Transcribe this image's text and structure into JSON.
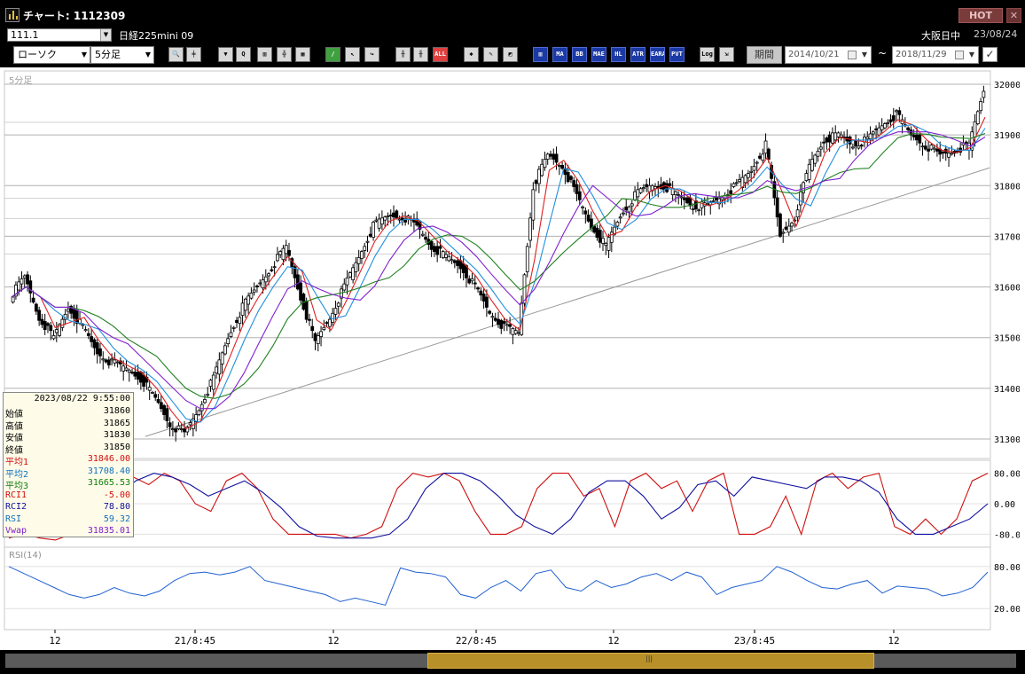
{
  "window": {
    "title": "チャート: 1112309",
    "hot_label": "HOT",
    "close_label": "✕"
  },
  "instrument": {
    "code": "111.1",
    "name": "日経225mini 09",
    "market": "大阪日中",
    "date": "23/08/24"
  },
  "toolbar": {
    "chart_type": "ローソク",
    "interval": "5分足",
    "icons": [
      {
        "name": "zoom-icon",
        "glyph": "🔍"
      },
      {
        "name": "crosshair-icon",
        "glyph": "╪"
      },
      {
        "name": "candle-tool-icon",
        "glyph": "▼"
      },
      {
        "name": "search-chart-icon",
        "glyph": "Q"
      },
      {
        "name": "bar-tool-icon",
        "glyph": "▥"
      },
      {
        "name": "pattern-icon",
        "glyph": "╬"
      },
      {
        "name": "grid-toggle-icon",
        "glyph": "▦"
      },
      {
        "name": "line-draw-icon",
        "glyph": "/"
      },
      {
        "name": "pointer-icon",
        "glyph": "↖"
      },
      {
        "name": "cursor-icon",
        "glyph": "↪"
      },
      {
        "name": "candle-add-icon",
        "glyph": "╫"
      },
      {
        "name": "candle-remove-icon",
        "glyph": "╫"
      },
      {
        "name": "all-icon",
        "glyph": "ALL"
      },
      {
        "name": "settings-icon",
        "glyph": "✱"
      },
      {
        "name": "brush-icon",
        "glyph": "✎"
      },
      {
        "name": "color-icon",
        "glyph": "◩"
      },
      {
        "name": "volume-icon",
        "glyph": "▥"
      },
      {
        "name": "ma-icon",
        "glyph": "MA"
      },
      {
        "name": "bb-icon",
        "glyph": "BB"
      },
      {
        "name": "mae-icon",
        "glyph": "MAE"
      },
      {
        "name": "hl-icon",
        "glyph": "HL"
      },
      {
        "name": "atr-icon",
        "glyph": "ATR"
      },
      {
        "name": "eara-icon",
        "glyph": "EARA"
      },
      {
        "name": "pvt-icon",
        "glyph": "PVT"
      },
      {
        "name": "log-icon",
        "glyph": "Log"
      },
      {
        "name": "export-icon",
        "glyph": "⇲"
      }
    ],
    "period_label": "期間",
    "date_from": "2014/10/21",
    "date_to": "2018/11/29",
    "tilde": "~",
    "check_glyph": "✓"
  },
  "chart_data": {
    "type": "candlestick",
    "chart_label": "5分足",
    "y_ticks": [
      "32000",
      "31900",
      "31800",
      "31700",
      "31600",
      "31500",
      "31400",
      "31300"
    ],
    "ylim": [
      31300,
      32000
    ],
    "x_ticks": [
      "12",
      "21/8:45",
      "12",
      "22/8:45",
      "12",
      "23/8:45",
      "12"
    ],
    "series": [
      {
        "name": "平均1",
        "color": "#e02020"
      },
      {
        "name": "平均2",
        "color": "#2090e0"
      },
      {
        "name": "平均3",
        "color": "#208020"
      },
      {
        "name": "Vwap",
        "color": "#8020d0"
      }
    ],
    "close_path": [
      31580,
      31620,
      31540,
      31500,
      31560,
      31520,
      31470,
      31450,
      31440,
      31420,
      31380,
      31330,
      31310,
      31360,
      31420,
      31500,
      31560,
      31600,
      31640,
      31680,
      31580,
      31490,
      31540,
      31600,
      31660,
      31720,
      31740,
      31740,
      31720,
      31680,
      31660,
      31640,
      31600,
      31550,
      31520,
      31510,
      31800,
      31860,
      31840,
      31780,
      31720,
      31680,
      31740,
      31780,
      31800,
      31800,
      31780,
      31760,
      31760,
      31780,
      31800,
      31830,
      31880,
      31700,
      31740,
      31840,
      31890,
      31900,
      31880,
      31890,
      31920,
      31940,
      31900,
      31880,
      31860,
      31870,
      31880,
      31990
    ],
    "indicators_panel": {
      "y_ticks": [
        "80.00",
        "0.00",
        "-80.00"
      ],
      "ylim": [
        -100,
        100
      ],
      "rci1_path": [
        -90,
        -80,
        -90,
        -95,
        -80,
        -60,
        40,
        80,
        70,
        50,
        80,
        60,
        0,
        -20,
        60,
        80,
        40,
        -40,
        -80,
        -80,
        -80,
        -80,
        -90,
        -80,
        -60,
        40,
        80,
        70,
        80,
        60,
        -20,
        -80,
        -80,
        -60,
        40,
        80,
        80,
        20,
        40,
        -60,
        60,
        80,
        40,
        60,
        -20,
        60,
        80,
        -80,
        -80,
        -60,
        20,
        -80,
        60,
        80,
        40,
        70,
        80,
        -60,
        -80,
        -40,
        -80,
        -40,
        60,
        80
      ],
      "rci2_path": [
        -60,
        -70,
        -80,
        -75,
        -60,
        -30,
        20,
        60,
        80,
        70,
        50,
        20,
        40,
        60,
        30,
        -10,
        -60,
        -85,
        -90,
        -90,
        -90,
        -80,
        -40,
        40,
        80,
        80,
        60,
        20,
        -30,
        -60,
        -80,
        -40,
        30,
        60,
        60,
        20,
        -40,
        -10,
        50,
        60,
        20,
        70,
        60,
        50,
        40,
        70,
        70,
        60,
        30,
        -40,
        -80,
        -80,
        -60,
        -40,
        0
      ]
    },
    "rsi_panel": {
      "label": "RSI(14)",
      "y_ticks": [
        "80.00",
        "20.00"
      ],
      "ylim": [
        0,
        100
      ],
      "rsi_path": [
        80,
        70,
        60,
        50,
        40,
        35,
        40,
        50,
        42,
        38,
        45,
        60,
        70,
        72,
        68,
        72,
        80,
        60,
        55,
        50,
        45,
        40,
        30,
        35,
        30,
        25,
        78,
        72,
        70,
        65,
        40,
        35,
        50,
        60,
        45,
        70,
        75,
        50,
        45,
        60,
        50,
        55,
        65,
        70,
        60,
        72,
        65,
        40,
        50,
        55,
        60,
        80,
        72,
        60,
        50,
        48,
        55,
        60,
        42,
        52,
        50,
        48,
        38,
        42,
        50,
        72
      ]
    }
  },
  "info_panel": {
    "datetime": "2023/08/22  9:55:00",
    "rows": [
      {
        "label": "始値",
        "value": "31860",
        "color": "#000000"
      },
      {
        "label": "高値",
        "value": "31865",
        "color": "#000000"
      },
      {
        "label": "安値",
        "value": "31830",
        "color": "#000000"
      },
      {
        "label": "終値",
        "value": "31850",
        "color": "#000000"
      },
      {
        "label": "平均1",
        "value": "31846.00",
        "color": "#d01010"
      },
      {
        "label": "平均2",
        "value": "31708.40",
        "color": "#1070c0"
      },
      {
        "label": "平均3",
        "value": "31665.53",
        "color": "#108010"
      },
      {
        "label": "RCI1",
        "value": "-5.00",
        "color": "#d01010"
      },
      {
        "label": "RCI2",
        "value": "78.80",
        "color": "#1010a0"
      },
      {
        "label": "RSI",
        "value": "59.32",
        "color": "#1070c0"
      },
      {
        "label": "Vwap",
        "value": "31835.01",
        "color": "#8020d0"
      }
    ]
  }
}
